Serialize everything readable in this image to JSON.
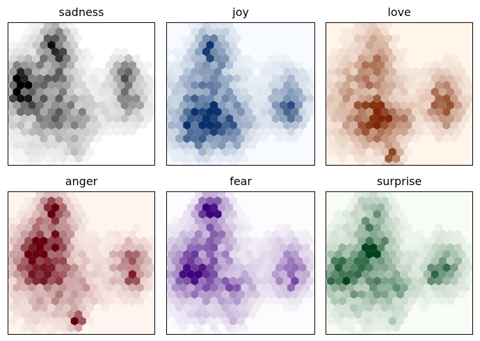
{
  "chart_data": [
    {
      "type": "hexbin",
      "title": "sadness",
      "colormap": "Greys",
      "base_color": "#ffffff",
      "peak_color": "#000000",
      "xlabel": "",
      "ylabel": ""
    },
    {
      "type": "hexbin",
      "title": "joy",
      "colormap": "Blues",
      "base_color": "#f7fbff",
      "peak_color": "#08306b",
      "xlabel": "",
      "ylabel": ""
    },
    {
      "type": "hexbin",
      "title": "love",
      "colormap": "Oranges",
      "base_color": "#fff5eb",
      "peak_color": "#7f2704",
      "xlabel": "",
      "ylabel": ""
    },
    {
      "type": "hexbin",
      "title": "anger",
      "colormap": "Reds",
      "base_color": "#fff5f0",
      "peak_color": "#67000d",
      "xlabel": "",
      "ylabel": ""
    },
    {
      "type": "hexbin",
      "title": "fear",
      "colormap": "Purples",
      "base_color": "#fcfbfd",
      "peak_color": "#3f007d",
      "xlabel": "",
      "ylabel": ""
    },
    {
      "type": "hexbin",
      "title": "surprise",
      "colormap": "Greens",
      "base_color": "#f7fcf5",
      "peak_color": "#00441b",
      "xlabel": "",
      "ylabel": ""
    }
  ]
}
